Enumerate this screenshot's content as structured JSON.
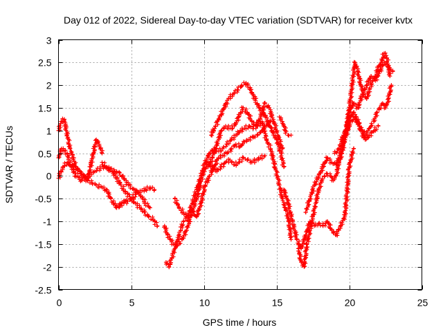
{
  "chart_data": {
    "type": "scatter",
    "title": "Day 012 of 2022, Sidereal Day-to-day VTEC variation (SDTVAR) for receiver kvtx",
    "xlabel": "GPS time / hours",
    "ylabel": "SDTVAR / TECUs",
    "xlim": [
      0,
      25
    ],
    "ylim": [
      -2.5,
      3
    ],
    "xticks": [
      0,
      5,
      10,
      15,
      20,
      25
    ],
    "yticks": [
      -2.5,
      -2,
      -1.5,
      -1,
      -0.5,
      0,
      0.5,
      1,
      1.5,
      2,
      2.5,
      3
    ],
    "xtick_labels": [
      "0",
      "5",
      "10",
      "15",
      "20",
      "25"
    ],
    "ytick_labels": [
      "-2.5",
      "-2",
      "-1.5",
      "-1",
      "-0.5",
      "0",
      "0.5",
      "1",
      "1.5",
      "2",
      "2.5",
      "3"
    ],
    "grid": true,
    "marker": "+",
    "color": "#ff0000",
    "series": [
      {
        "name": "s1",
        "x": [
          0.0,
          0.2,
          0.4,
          0.6,
          0.8,
          1.0,
          1.2,
          1.5,
          1.8,
          2.0,
          2.2,
          2.4,
          2.6,
          2.8,
          3.0
        ],
        "y": [
          1.0,
          1.2,
          1.25,
          0.9,
          0.6,
          0.4,
          0.2,
          0.1,
          0.0,
          -0.1,
          0.2,
          0.5,
          0.8,
          0.7,
          0.5
        ]
      },
      {
        "name": "s2",
        "x": [
          0.0,
          0.2,
          0.4,
          0.6,
          0.8,
          1.0,
          1.2,
          1.5,
          1.8,
          2.0,
          2.3,
          2.6,
          3.0,
          3.3,
          3.6,
          4.0,
          4.3,
          4.6
        ],
        "y": [
          0.4,
          0.6,
          0.55,
          0.5,
          0.3,
          0.2,
          0.15,
          0.05,
          -0.05,
          -0.1,
          -0.15,
          -0.2,
          -0.25,
          -0.3,
          -0.5,
          -0.7,
          -0.6,
          -0.55
        ]
      },
      {
        "name": "s3",
        "x": [
          0.0,
          0.3,
          0.6,
          0.9,
          1.2,
          1.6,
          2.0,
          2.5,
          3.0,
          3.5,
          4.0,
          4.4,
          4.8,
          5.2,
          5.6,
          6.0,
          6.3
        ],
        "y": [
          -0.05,
          0.2,
          0.3,
          0.2,
          0.0,
          -0.1,
          0.0,
          0.1,
          0.2,
          0.15,
          0.1,
          0.0,
          -0.2,
          -0.3,
          -0.4,
          -0.6,
          -0.7
        ]
      },
      {
        "name": "s4",
        "x": [
          3.0,
          3.3,
          3.7,
          4.0,
          4.3,
          4.6,
          5.0,
          5.3,
          5.6,
          5.9,
          6.2,
          6.5,
          6.8
        ],
        "y": [
          0.3,
          0.2,
          0.1,
          -0.05,
          -0.2,
          -0.35,
          -0.5,
          -0.6,
          -0.7,
          -0.8,
          -0.9,
          -0.95,
          -1.1
        ]
      },
      {
        "name": "s5",
        "x": [
          4.0,
          4.5,
          5.0,
          5.5,
          6.0,
          6.3,
          6.6
        ],
        "y": [
          -0.7,
          -0.6,
          -0.5,
          -0.35,
          -0.3,
          -0.25,
          -0.3
        ]
      },
      {
        "name": "s6",
        "x": [
          7.3,
          7.5,
          7.7,
          7.9,
          8.1,
          8.3,
          8.5,
          8.8,
          9.0,
          9.2,
          9.4,
          9.6,
          9.8,
          10.0,
          10.3,
          10.6,
          10.9,
          11.2,
          11.5,
          11.8,
          12.1,
          12.4,
          12.7,
          13.0,
          13.3,
          13.6,
          13.9,
          14.2
        ],
        "y": [
          -1.1,
          -1.3,
          -1.4,
          -1.5,
          -1.55,
          -1.5,
          -1.4,
          -1.2,
          -1.0,
          -0.8,
          -0.6,
          -0.4,
          -0.1,
          0.1,
          0.3,
          0.2,
          0.1,
          0.2,
          0.3,
          0.35,
          0.25,
          0.3,
          0.4,
          0.35,
          0.3,
          0.35,
          0.4,
          0.45
        ]
      },
      {
        "name": "s7",
        "x": [
          7.4,
          7.6,
          7.8,
          8.0,
          8.2,
          8.4,
          8.6,
          8.9,
          9.2,
          9.5,
          9.8,
          10.1,
          10.4,
          10.7,
          11.0,
          11.3,
          11.6,
          11.9,
          12.2,
          12.5,
          12.8,
          13.1,
          13.4,
          13.7,
          14.0,
          14.3,
          14.6
        ],
        "y": [
          -1.9,
          -2.0,
          -1.8,
          -1.6,
          -1.4,
          -1.2,
          -1.0,
          -0.9,
          -0.8,
          -0.9,
          -0.6,
          -0.2,
          0.0,
          0.2,
          0.4,
          0.45,
          0.5,
          0.6,
          0.7,
          0.65,
          0.75,
          0.8,
          0.85,
          0.9,
          1.0,
          1.1,
          1.2
        ]
      },
      {
        "name": "s8",
        "x": [
          8.0,
          8.3,
          8.6,
          8.9,
          9.2,
          9.5,
          9.8,
          10.1,
          10.4,
          10.7,
          11.0,
          11.3,
          11.6,
          11.9,
          12.2,
          12.5,
          12.8,
          13.1,
          13.4,
          13.7,
          14.0,
          14.3,
          14.6,
          14.9,
          15.2,
          15.4,
          15.6,
          15.8,
          16.0
        ],
        "y": [
          -0.5,
          -0.7,
          -0.8,
          -0.9,
          -0.6,
          -0.3,
          0.0,
          0.3,
          0.5,
          0.6,
          0.55,
          0.6,
          0.7,
          0.8,
          0.9,
          1.0,
          1.05,
          1.1,
          1.05,
          1.1,
          1.2,
          0.8,
          0.6,
          0.2,
          -0.2,
          -0.5,
          -0.7,
          -0.9,
          -1.4
        ]
      },
      {
        "name": "s9",
        "x": [
          10.5,
          10.8,
          11.1,
          11.4,
          11.7,
          12.0,
          12.3,
          12.6,
          12.9,
          13.2,
          13.5,
          13.8,
          14.1,
          14.4,
          14.7,
          15.0,
          15.3,
          15.5
        ],
        "y": [
          0.9,
          1.1,
          1.3,
          1.5,
          1.7,
          1.8,
          1.9,
          2.0,
          2.05,
          1.9,
          1.7,
          1.5,
          1.4,
          1.2,
          1.0,
          0.8,
          0.5,
          0.2
        ]
      },
      {
        "name": "s10",
        "x": [
          10.3,
          10.6,
          10.9,
          11.2,
          11.5,
          11.8,
          12.1,
          12.4,
          12.7,
          13.0,
          13.3,
          13.6,
          13.9,
          14.2,
          14.5,
          14.8,
          15.1,
          15.4
        ],
        "y": [
          0.2,
          0.4,
          0.7,
          1.0,
          1.1,
          1.05,
          1.1,
          1.3,
          1.5,
          1.4,
          1.2,
          1.1,
          1.3,
          1.6,
          1.5,
          1.2,
          0.9,
          0.6
        ]
      },
      {
        "name": "s11",
        "x": [
          15.2,
          15.4,
          15.6,
          15.8,
          16.0
        ],
        "y": [
          1.3,
          1.2,
          1.0,
          0.9,
          0.9
        ]
      },
      {
        "name": "s12",
        "x": [
          15.5,
          15.8,
          16.1,
          16.4,
          16.7,
          17.0,
          17.3,
          17.6,
          17.9,
          18.2,
          18.5,
          18.8,
          19.1,
          19.4,
          19.7,
          20.0,
          20.3
        ],
        "y": [
          -0.3,
          -0.6,
          -1.0,
          -1.4,
          -1.6,
          -1.3,
          -1.0,
          -1.1,
          -1.05,
          -1.1,
          -1.0,
          -1.2,
          -1.3,
          -1.1,
          -0.9,
          0.2,
          0.6
        ]
      },
      {
        "name": "s13",
        "x": [
          16.5,
          16.7,
          16.9,
          17.1,
          17.3,
          17.5,
          17.7,
          17.9,
          18.1,
          18.3,
          18.5,
          18.7,
          18.9,
          19.1,
          19.3,
          19.5,
          19.7,
          19.9,
          20.1,
          20.3,
          20.5,
          20.7,
          20.9,
          21.1,
          21.3,
          21.5,
          21.7,
          21.9,
          22.1,
          22.3,
          22.5,
          22.7,
          22.9
        ],
        "y": [
          -1.6,
          -1.9,
          -2.0,
          -1.5,
          -1.2,
          -0.9,
          -0.6,
          -0.3,
          -0.1,
          0.0,
          0.05,
          0.0,
          -0.1,
          0.0,
          0.3,
          0.5,
          0.8,
          1.0,
          1.3,
          1.4,
          1.2,
          1.1,
          1.0,
          0.9,
          1.0,
          1.1,
          1.2,
          1.4,
          1.5,
          1.6,
          1.5,
          1.7,
          2.0
        ]
      },
      {
        "name": "s14",
        "x": [
          17.0,
          17.3,
          17.6,
          17.9,
          18.2,
          18.5,
          18.8,
          19.1,
          19.4,
          19.7,
          20.0,
          20.3,
          20.6,
          20.9,
          21.2,
          21.5,
          21.8,
          22.1,
          22.4,
          22.7,
          23.0
        ],
        "y": [
          -0.8,
          -0.5,
          -0.2,
          0.0,
          0.2,
          0.4,
          0.3,
          0.25,
          0.5,
          0.9,
          1.4,
          1.6,
          1.5,
          1.8,
          2.0,
          2.2,
          2.1,
          2.3,
          2.5,
          2.4,
          2.3
        ]
      },
      {
        "name": "s15",
        "x": [
          19.6,
          19.8,
          20.0,
          20.2,
          20.4,
          20.6,
          20.8,
          21.0,
          21.2,
          21.4,
          21.6,
          21.8,
          22.0,
          22.2,
          22.4,
          22.6,
          22.8
        ],
        "y": [
          0.7,
          1.0,
          1.5,
          2.0,
          2.5,
          2.3,
          2.0,
          1.8,
          1.7,
          1.9,
          2.1,
          2.2,
          2.4,
          2.5,
          2.7,
          2.6,
          2.2
        ]
      },
      {
        "name": "s16",
        "x": [
          19.0,
          19.3,
          19.6,
          19.9,
          20.2,
          20.5,
          20.8,
          21.1,
          21.4,
          21.7,
          22.0
        ],
        "y": [
          0.5,
          0.6,
          0.9,
          1.1,
          1.2,
          1.3,
          1.0,
          0.8,
          0.9,
          1.0,
          1.1
        ]
      }
    ]
  }
}
